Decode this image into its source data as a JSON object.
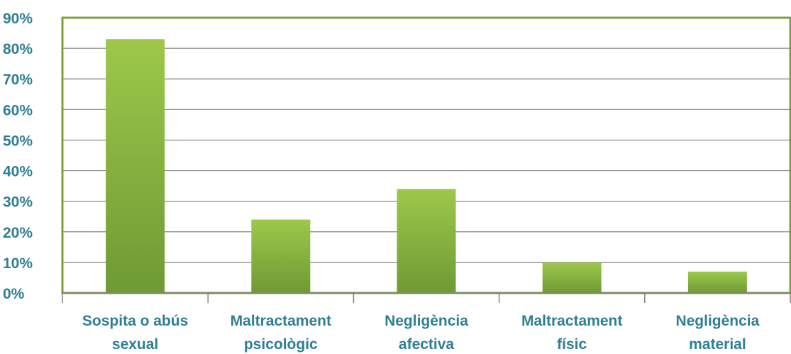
{
  "chart_data": {
    "type": "bar",
    "categories": [
      [
        "Sospita o abús",
        "sexual"
      ],
      [
        "Maltractament",
        "psicològic"
      ],
      [
        "Negligència",
        "afectiva"
      ],
      [
        "Maltractament",
        "físic"
      ],
      [
        "Negligència",
        "material"
      ]
    ],
    "values": [
      83,
      24,
      34,
      10,
      7
    ],
    "y_ticks": [
      "0%",
      "10%",
      "20%",
      "30%",
      "40%",
      "50%",
      "60%",
      "70%",
      "80%",
      "90%"
    ],
    "ylim": [
      0,
      90
    ],
    "grid": true,
    "legend": "none",
    "colors": {
      "bar_top": "#9dc84b",
      "bar_bottom": "#6f9a34",
      "plot_border": "#7aa33a",
      "grid": "#808080",
      "label": "#2e7f93"
    }
  }
}
